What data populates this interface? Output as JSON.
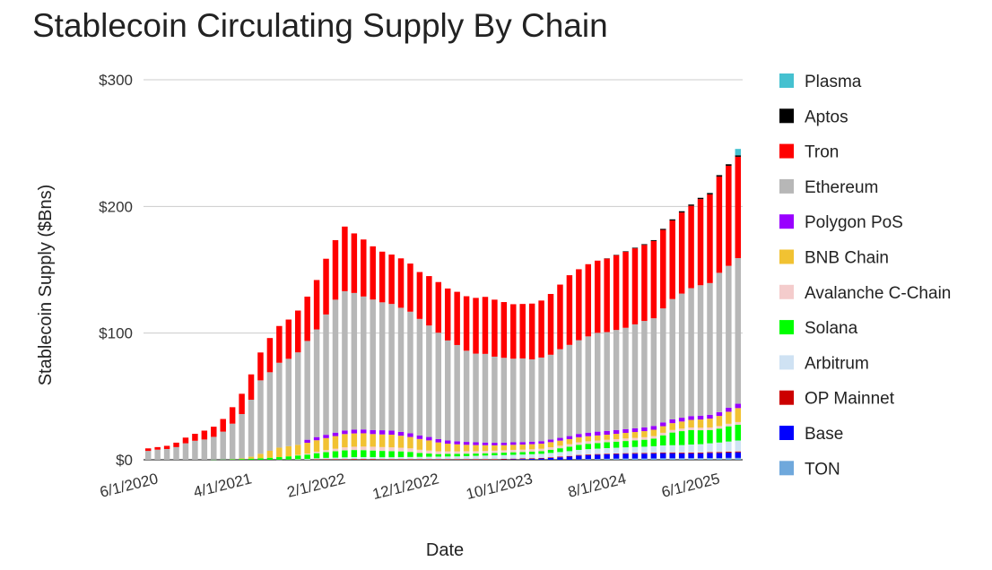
{
  "chart_data": {
    "type": "bar",
    "stacked": true,
    "title": "Stablecoin Circulating Supply By Chain",
    "xlabel": "Date",
    "ylabel": "Stablecoin Supply ($Bns)",
    "ylim": [
      0,
      300
    ],
    "y_ticks": [
      0,
      100,
      200,
      300
    ],
    "y_tick_labels": [
      "$0",
      "$100",
      "$200",
      "$300"
    ],
    "x_tick_labels": [
      "6/1/2020",
      "4/1/2021",
      "2/1/2022",
      "12/1/2022",
      "10/1/2023",
      "8/1/2024",
      "6/1/2025"
    ],
    "x_tick_indices": [
      0,
      10,
      20,
      30,
      40,
      50,
      60
    ],
    "grid": true,
    "legend_position": "right",
    "categories": [
      "6/1/2020",
      "7/1/2020",
      "8/1/2020",
      "9/1/2020",
      "10/1/2020",
      "11/1/2020",
      "12/1/2020",
      "1/1/2021",
      "2/1/2021",
      "3/1/2021",
      "4/1/2021",
      "5/1/2021",
      "6/1/2021",
      "7/1/2021",
      "8/1/2021",
      "9/1/2021",
      "10/1/2021",
      "11/1/2021",
      "12/1/2021",
      "1/1/2022",
      "2/1/2022",
      "3/1/2022",
      "4/1/2022",
      "5/1/2022",
      "6/1/2022",
      "7/1/2022",
      "8/1/2022",
      "9/1/2022",
      "10/1/2022",
      "11/1/2022",
      "12/1/2022",
      "1/1/2023",
      "2/1/2023",
      "3/1/2023",
      "4/1/2023",
      "5/1/2023",
      "6/1/2023",
      "7/1/2023",
      "8/1/2023",
      "9/1/2023",
      "10/1/2023",
      "11/1/2023",
      "12/1/2023",
      "1/1/2024",
      "2/1/2024",
      "3/1/2024",
      "4/1/2024",
      "5/1/2024",
      "6/1/2024",
      "7/1/2024",
      "8/1/2024",
      "9/1/2024",
      "10/1/2024",
      "11/1/2024",
      "12/1/2024",
      "1/1/2025",
      "2/1/2025",
      "3/1/2025",
      "4/1/2025",
      "5/1/2025",
      "6/1/2025",
      "7/1/2025",
      "8/1/2025",
      "9/1/2025"
    ],
    "series": [
      {
        "name": "TON",
        "color": "#6fa8dc",
        "values": [
          0,
          0,
          0,
          0,
          0,
          0,
          0,
          0,
          0,
          0,
          0,
          0,
          0,
          0,
          0,
          0,
          0,
          0,
          0,
          0,
          0,
          0,
          0,
          0,
          0,
          0,
          0,
          0,
          0,
          0,
          0,
          0,
          0,
          0,
          0,
          0,
          0,
          0,
          0,
          0,
          0,
          0,
          0,
          0,
          0,
          0,
          0.3,
          0.5,
          0.6,
          0.8,
          0.9,
          1.0,
          1.0,
          1.0,
          1.1,
          1.2,
          1.2,
          1.2,
          1.3,
          1.3,
          1.4,
          1.4,
          1.5,
          1.5
        ]
      },
      {
        "name": "Base",
        "color": "#0000ff",
        "values": [
          0,
          0,
          0,
          0,
          0,
          0,
          0,
          0,
          0,
          0,
          0,
          0,
          0,
          0,
          0,
          0,
          0,
          0,
          0,
          0,
          0,
          0,
          0,
          0,
          0,
          0,
          0,
          0,
          0,
          0,
          0,
          0,
          0,
          0,
          0,
          0,
          0,
          0,
          0.2,
          0.4,
          0.6,
          0.8,
          1.0,
          1.5,
          2.0,
          2.5,
          3.0,
          3.2,
          3.4,
          3.5,
          3.6,
          3.7,
          3.8,
          3.8,
          3.8,
          4.0,
          4.0,
          3.8,
          3.8,
          3.8,
          4.0,
          4.0,
          4.2,
          4.4
        ]
      },
      {
        "name": "OP Mainnet",
        "color": "#cc0000",
        "values": [
          0,
          0,
          0,
          0,
          0,
          0,
          0,
          0,
          0,
          0,
          0,
          0,
          0,
          0,
          0,
          0,
          0,
          0,
          0.4,
          0.5,
          0.5,
          0.5,
          0.6,
          0.6,
          0.6,
          0.5,
          0.5,
          0.5,
          0.5,
          0.5,
          0.5,
          0.5,
          0.5,
          0.5,
          0.5,
          0.5,
          0.5,
          0.5,
          0.5,
          0.5,
          0.5,
          0.5,
          0.5,
          0.5,
          0.5,
          0.5,
          0.5,
          0.5,
          0.5,
          0.5,
          0.5,
          0.5,
          0.5,
          0.5,
          0.6,
          0.6,
          0.6,
          0.6,
          0.6,
          0.6,
          0.6,
          0.7,
          0.7,
          0.7
        ]
      },
      {
        "name": "Arbitrum",
        "color": "#cfe2f3",
        "values": [
          0,
          0,
          0,
          0,
          0,
          0,
          0,
          0,
          0,
          0,
          0,
          0,
          0,
          0,
          0.1,
          0.2,
          0.4,
          0.6,
          0.8,
          1.0,
          1.2,
          1.4,
          1.5,
          1.5,
          1.5,
          1.5,
          1.5,
          1.6,
          1.7,
          1.8,
          1.9,
          2.0,
          2.1,
          2.2,
          2.4,
          2.6,
          2.8,
          3.0,
          3.0,
          3.0,
          3.0,
          3.1,
          3.2,
          3.4,
          3.6,
          3.8,
          4.0,
          4.2,
          4.3,
          4.4,
          4.5,
          4.6,
          4.8,
          5.0,
          5.2,
          5.5,
          5.7,
          6.0,
          6.3,
          6.6,
          7.0,
          7.5,
          8.0,
          8.6
        ]
      },
      {
        "name": "Solana",
        "color": "#00ff00",
        "values": [
          0,
          0,
          0,
          0,
          0,
          0,
          0,
          0.1,
          0.2,
          0.4,
          0.6,
          0.9,
          1.2,
          1.6,
          2.0,
          2.5,
          3.0,
          3.5,
          4.0,
          4.5,
          5.0,
          5.5,
          5.6,
          5.5,
          5.2,
          5.0,
          4.8,
          4.5,
          4.0,
          3.0,
          2.5,
          2.0,
          2.0,
          2.0,
          1.9,
          1.8,
          1.8,
          1.8,
          1.9,
          2.0,
          2.0,
          2.0,
          2.1,
          2.5,
          3.0,
          3.5,
          4.0,
          4.2,
          4.4,
          4.6,
          4.8,
          5.0,
          5.2,
          5.5,
          6.0,
          8.0,
          10.0,
          11.0,
          11.5,
          11.0,
          10.5,
          11.0,
          12.0,
          12.5
        ]
      },
      {
        "name": "Avalanche C-Chain",
        "color": "#f4cccc",
        "values": [
          0,
          0,
          0,
          0,
          0,
          0,
          0,
          0,
          0,
          0,
          0,
          0,
          0,
          0,
          0,
          0,
          0.4,
          0.8,
          1.2,
          1.6,
          2.0,
          2.4,
          2.6,
          2.8,
          3.0,
          3.0,
          3.0,
          2.9,
          2.8,
          2.6,
          2.4,
          2.2,
          2.1,
          2.0,
          2.0,
          1.9,
          1.9,
          1.9,
          1.9,
          1.9,
          1.9,
          1.9,
          1.9,
          2.0,
          2.0,
          2.0,
          2.0,
          2.0,
          2.0,
          2.0,
          2.0,
          2.0,
          2.0,
          2.0,
          2.0,
          2.0,
          2.0,
          2.0,
          2.0,
          2.0,
          2.0,
          2.0,
          2.0,
          2.1
        ]
      },
      {
        "name": "BNB Chain",
        "color": "#f1c232",
        "values": [
          0,
          0,
          0,
          0,
          0,
          0,
          0,
          0,
          0,
          0.1,
          0.5,
          1.5,
          3.5,
          5.5,
          7.5,
          8.0,
          8.0,
          8.5,
          9.0,
          9.5,
          10.0,
          10.5,
          10.5,
          10.5,
          10.0,
          10.0,
          10.0,
          9.5,
          9.0,
          8.5,
          8.0,
          7.0,
          6.0,
          5.5,
          5.0,
          4.8,
          4.5,
          4.2,
          4.0,
          4.0,
          4.0,
          4.0,
          4.0,
          4.0,
          4.0,
          4.0,
          4.0,
          4.0,
          4.0,
          4.0,
          4.2,
          4.4,
          4.6,
          4.8,
          5.0,
          5.2,
          5.4,
          5.6,
          6.0,
          6.5,
          7.0,
          8.0,
          9.5,
          11.0
        ]
      },
      {
        "name": "Polygon PoS",
        "color": "#9900ff",
        "values": [
          0,
          0,
          0,
          0,
          0,
          0,
          0,
          0,
          0,
          0,
          0,
          0,
          0,
          0,
          0,
          0,
          0,
          2.4,
          2.5,
          2.6,
          2.7,
          2.8,
          2.9,
          3.0,
          3.2,
          3.3,
          3.2,
          3.0,
          2.9,
          2.8,
          2.7,
          2.6,
          2.5,
          2.4,
          2.3,
          2.2,
          2.1,
          2.0,
          2.0,
          2.0,
          2.0,
          2.0,
          2.0,
          2.0,
          2.2,
          2.4,
          2.6,
          2.8,
          3.0,
          3.0,
          3.0,
          3.0,
          3.0,
          3.0,
          3.0,
          3.0,
          3.0,
          3.0,
          3.0,
          3.0,
          3.0,
          3.0,
          3.2,
          3.4
        ]
      },
      {
        "name": "Ethereum",
        "color": "#b7b7b7",
        "values": [
          7,
          8,
          8.5,
          10,
          13,
          15,
          16,
          18,
          22,
          28,
          35,
          45,
          58,
          62,
          67,
          69,
          73,
          78,
          85,
          95,
          105,
          110,
          108,
          105,
          103,
          101,
          100,
          98,
          96,
          92,
          88,
          84,
          79,
          76,
          72,
          70,
          70,
          68,
          67,
          66,
          66,
          65,
          66,
          67,
          70,
          72,
          74,
          76,
          78,
          78,
          79,
          80,
          82,
          84,
          85,
          90,
          95,
          98,
          101,
          103,
          104,
          110,
          112,
          115
        ]
      },
      {
        "name": "Tron",
        "color": "#ff0000",
        "values": [
          2,
          2,
          2.5,
          3.5,
          4.5,
          5.5,
          7,
          8,
          10,
          13,
          16,
          20,
          22,
          27,
          29,
          31,
          33,
          35,
          39,
          44,
          47,
          51,
          47,
          45,
          42,
          40,
          39,
          39,
          38,
          37,
          39,
          40,
          41,
          42,
          43,
          44,
          45,
          45,
          44,
          43,
          43,
          44,
          45,
          48,
          51,
          55,
          56,
          57,
          57,
          58,
          59,
          60,
          60,
          60,
          61,
          62,
          62,
          64,
          65,
          68,
          70,
          76,
          79,
          80
        ]
      },
      {
        "name": "Aptos",
        "color": "#000000",
        "values": [
          0,
          0,
          0,
          0,
          0,
          0,
          0,
          0,
          0,
          0,
          0,
          0,
          0,
          0,
          0,
          0,
          0,
          0,
          0,
          0,
          0,
          0,
          0,
          0,
          0,
          0,
          0,
          0,
          0,
          0,
          0,
          0,
          0,
          0,
          0,
          0,
          0,
          0,
          0,
          0,
          0,
          0,
          0,
          0,
          0,
          0,
          0,
          0,
          0,
          0.2,
          0.3,
          0.4,
          0.5,
          0.6,
          0.7,
          0.8,
          0.9,
          1.0,
          1.0,
          1.0,
          1.1,
          1.1,
          1.2,
          1.2
        ]
      },
      {
        "name": "Plasma",
        "color": "#45c1d0",
        "values": [
          0,
          0,
          0,
          0,
          0,
          0,
          0,
          0,
          0,
          0,
          0,
          0,
          0,
          0,
          0,
          0,
          0,
          0,
          0,
          0,
          0,
          0,
          0,
          0,
          0,
          0,
          0,
          0,
          0,
          0,
          0,
          0,
          0,
          0,
          0,
          0,
          0,
          0,
          0,
          0,
          0,
          0,
          0,
          0,
          0,
          0,
          0,
          0,
          0,
          0,
          0,
          0,
          0,
          0,
          0,
          0,
          0,
          0,
          0,
          0,
          0,
          0,
          0,
          5
        ]
      }
    ],
    "legend_order": [
      "Plasma",
      "Aptos",
      "Tron",
      "Ethereum",
      "Polygon PoS",
      "BNB Chain",
      "Avalanche C-Chain",
      "Solana",
      "Arbitrum",
      "OP Mainnet",
      "Base",
      "TON"
    ]
  }
}
